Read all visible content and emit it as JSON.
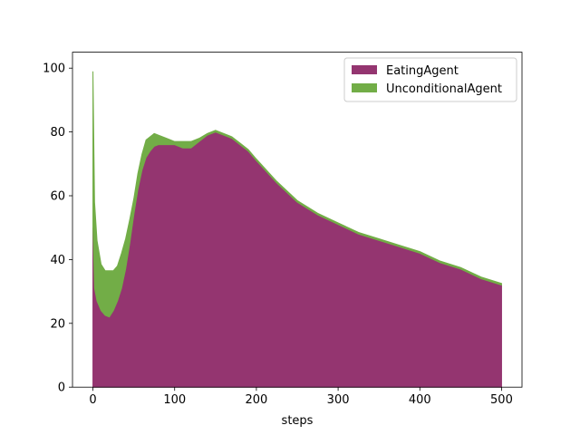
{
  "chart_data": {
    "type": "area",
    "stacked": true,
    "title": "",
    "xlabel": "steps",
    "ylabel": "",
    "xlim": [
      -25,
      525
    ],
    "ylim": [
      0,
      105
    ],
    "xticks": [
      0,
      100,
      200,
      300,
      400,
      500
    ],
    "yticks": [
      0,
      20,
      40,
      60,
      80,
      100
    ],
    "grid": false,
    "legend_position": "top-right",
    "x": [
      0,
      2,
      5,
      10,
      15,
      20,
      25,
      30,
      35,
      40,
      45,
      50,
      55,
      60,
      65,
      70,
      75,
      80,
      90,
      100,
      110,
      120,
      130,
      140,
      150,
      160,
      170,
      180,
      190,
      200,
      225,
      250,
      275,
      300,
      325,
      350,
      375,
      400,
      425,
      450,
      475,
      500
    ],
    "series": [
      {
        "name": "EatingAgent",
        "color": "#943570",
        "values": [
          50,
          31,
          27,
          24,
          22.5,
          22,
          24,
          27,
          31,
          37,
          45,
          54,
          62,
          68,
          72,
          74,
          75.5,
          76,
          76,
          76,
          75,
          75,
          77,
          79,
          80,
          79,
          78,
          76,
          74,
          71,
          64,
          58,
          54,
          51,
          48,
          46,
          44,
          42,
          39,
          37,
          34,
          32
        ]
      },
      {
        "name": "UnconditionalAgent",
        "color": "#72ad47",
        "values": [
          49,
          27,
          19,
          14.5,
          14,
          14.5,
          12.5,
          11,
          11,
          9.5,
          7.5,
          5,
          5,
          5,
          5.5,
          4.5,
          4,
          3,
          2,
          1,
          2,
          2,
          1,
          0.5,
          0.5,
          0.5,
          0.5,
          0.5,
          0.5,
          0.5,
          0.5,
          0.5,
          0.5,
          0.5,
          0.5,
          0.5,
          0.5,
          0.5,
          0.5,
          0.5,
          0.5,
          0.5
        ]
      }
    ]
  }
}
